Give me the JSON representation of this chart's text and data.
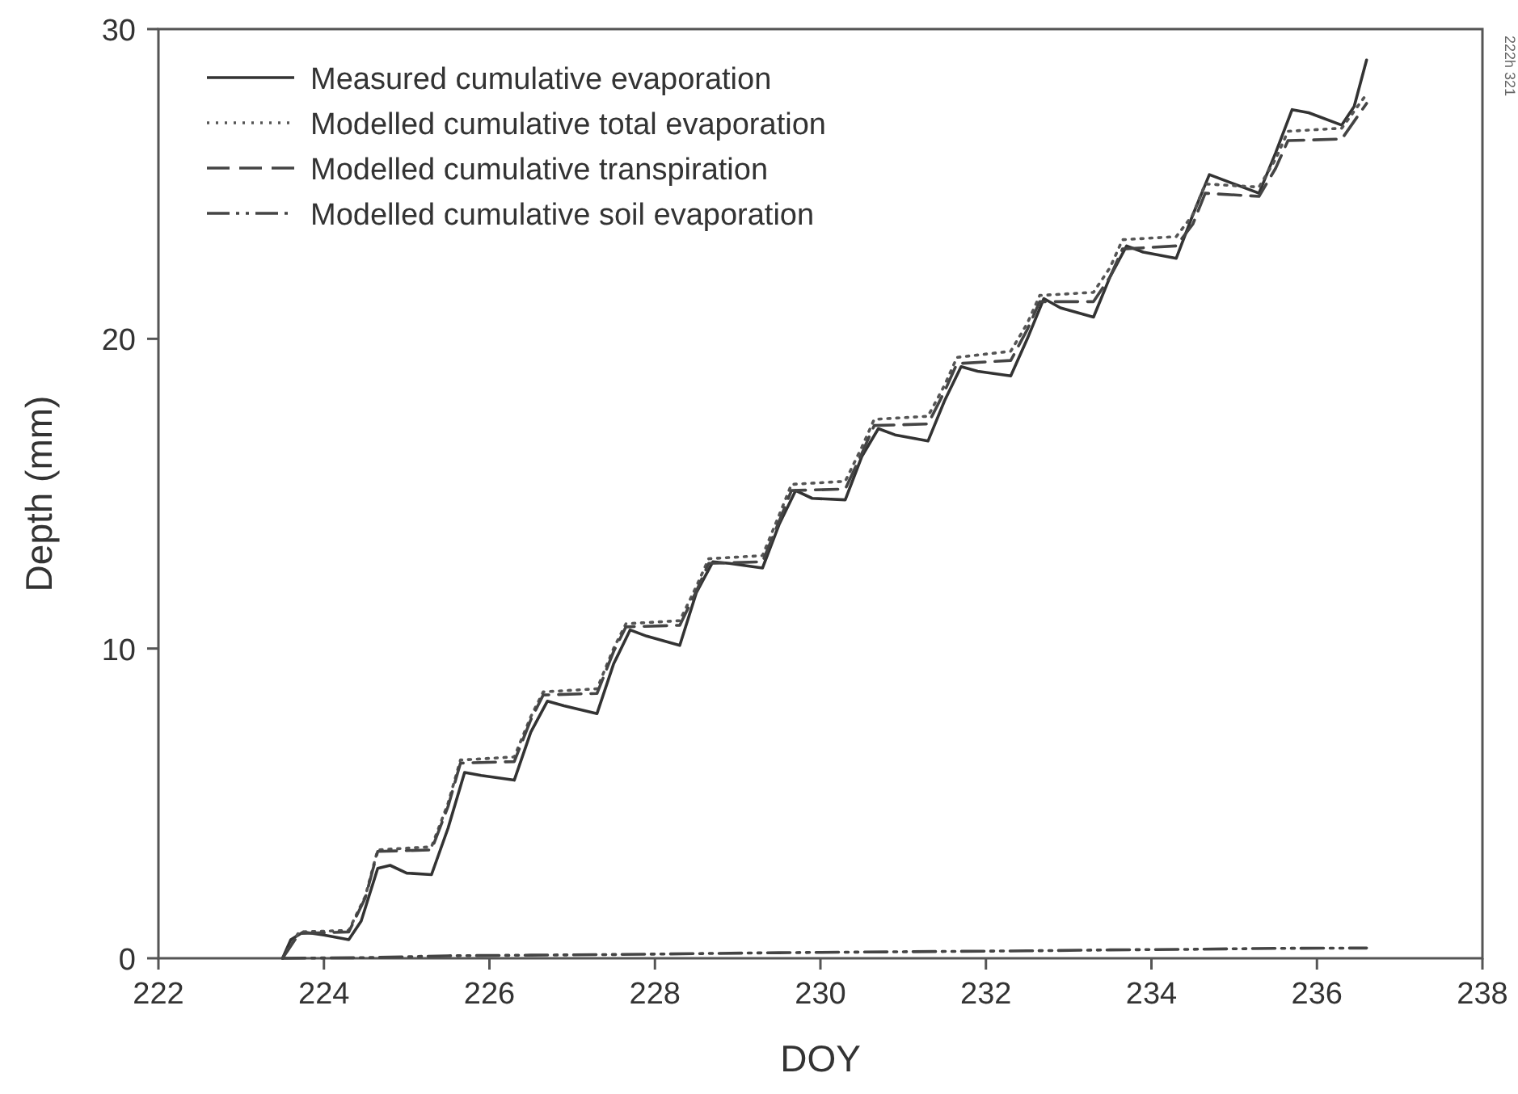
{
  "chart_data": {
    "type": "line",
    "xlabel": "DOY",
    "ylabel": "Depth (mm)",
    "xlim": [
      222,
      238
    ],
    "xticks": [
      222,
      224,
      226,
      228,
      230,
      232,
      234,
      236,
      238
    ],
    "ylim": [
      0,
      30
    ],
    "yticks": [
      0,
      10,
      20,
      30
    ],
    "grid": false,
    "legend": "top left",
    "marker": "none",
    "annotations": [
      "222h 321"
    ],
    "series": [
      {
        "name": "Measured cumulative evaporation",
        "color": "#333333",
        "line_style": "solid",
        "x": [
          223.5,
          223.6,
          223.75,
          224.0,
          224.3,
          224.45,
          224.65,
          224.8,
          225.0,
          225.3,
          225.5,
          225.7,
          225.9,
          226.3,
          226.5,
          226.7,
          226.9,
          227.3,
          227.5,
          227.7,
          227.9,
          228.3,
          228.5,
          228.7,
          228.9,
          229.3,
          229.5,
          229.7,
          229.9,
          230.3,
          230.5,
          230.7,
          230.9,
          231.3,
          231.5,
          231.7,
          231.9,
          232.3,
          232.5,
          232.7,
          232.9,
          233.3,
          233.5,
          233.7,
          233.9,
          234.3,
          234.5,
          234.7,
          234.9,
          235.3,
          235.5,
          235.7,
          235.9,
          236.3,
          236.45,
          236.6
        ],
        "values": [
          0,
          0.6,
          0.85,
          0.75,
          0.6,
          1.2,
          2.9,
          3.0,
          2.75,
          2.7,
          4.2,
          6.0,
          5.9,
          5.75,
          7.3,
          8.3,
          8.15,
          7.9,
          9.5,
          10.6,
          10.4,
          10.1,
          11.8,
          12.8,
          12.75,
          12.6,
          14.0,
          15.1,
          14.85,
          14.8,
          16.2,
          17.1,
          16.9,
          16.7,
          18.0,
          19.1,
          18.95,
          18.8,
          20.0,
          21.3,
          21.0,
          20.7,
          22.0,
          23.0,
          22.8,
          22.6,
          24.0,
          25.3,
          25.1,
          24.7,
          26.0,
          27.4,
          27.3,
          26.9,
          27.5,
          29.0
        ]
      },
      {
        "name": "Modelled cumulative total evaporation",
        "color": "#555555",
        "line_style": "dotted",
        "x": [
          223.5,
          223.7,
          224.3,
          224.5,
          224.65,
          225.3,
          225.5,
          225.65,
          226.3,
          226.5,
          226.65,
          227.3,
          227.5,
          227.65,
          228.3,
          228.5,
          228.65,
          229.3,
          229.5,
          229.65,
          230.3,
          230.5,
          230.65,
          231.3,
          231.5,
          231.65,
          232.3,
          232.5,
          232.65,
          233.3,
          233.5,
          233.65,
          234.3,
          234.5,
          234.65,
          235.3,
          235.5,
          235.65,
          236.3,
          236.6
        ],
        "values": [
          0,
          0.85,
          0.9,
          2.0,
          3.5,
          3.6,
          5.0,
          6.4,
          6.5,
          7.8,
          8.6,
          8.7,
          10.0,
          10.8,
          10.9,
          12.0,
          12.9,
          13.0,
          14.3,
          15.3,
          15.4,
          16.5,
          17.4,
          17.5,
          18.5,
          19.4,
          19.6,
          20.5,
          21.4,
          21.5,
          22.3,
          23.2,
          23.3,
          24.0,
          25.0,
          24.9,
          25.8,
          26.7,
          26.8,
          27.9
        ]
      },
      {
        "name": "Modelled cumulative transpiration",
        "color": "#444444",
        "line_style": "dashed",
        "x": [
          223.5,
          223.7,
          224.3,
          224.5,
          224.65,
          225.3,
          225.5,
          225.65,
          226.3,
          226.5,
          226.65,
          227.3,
          227.5,
          227.65,
          228.3,
          228.5,
          228.65,
          229.3,
          229.5,
          229.65,
          230.3,
          230.5,
          230.65,
          231.3,
          231.5,
          231.65,
          232.3,
          232.5,
          232.65,
          233.3,
          233.5,
          233.65,
          234.3,
          234.5,
          234.65,
          235.3,
          235.5,
          235.65,
          236.3,
          236.6
        ],
        "values": [
          0,
          0.8,
          0.85,
          1.95,
          3.45,
          3.5,
          4.9,
          6.3,
          6.35,
          7.7,
          8.5,
          8.55,
          9.9,
          10.7,
          10.75,
          11.85,
          12.75,
          12.8,
          14.1,
          15.1,
          15.15,
          16.3,
          17.2,
          17.25,
          18.3,
          19.2,
          19.3,
          20.3,
          21.2,
          21.2,
          22.0,
          22.9,
          23.0,
          23.7,
          24.7,
          24.6,
          25.5,
          26.4,
          26.45,
          27.6
        ]
      },
      {
        "name": "Modelled cumulative soil evaporation",
        "color": "#444444",
        "line_style": "dashdot",
        "x": [
          223.5,
          224.5,
          225.5,
          226.5,
          227.5,
          228.5,
          229.5,
          230.5,
          231.5,
          232.5,
          233.5,
          234.5,
          235.5,
          236.6
        ],
        "values": [
          0,
          0.02,
          0.08,
          0.1,
          0.12,
          0.15,
          0.18,
          0.2,
          0.22,
          0.24,
          0.27,
          0.29,
          0.32,
          0.33
        ]
      }
    ]
  }
}
